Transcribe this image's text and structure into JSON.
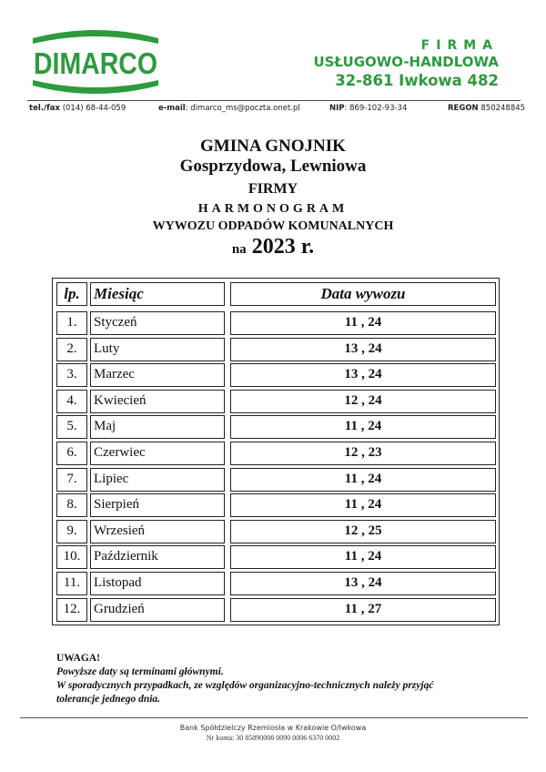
{
  "header": {
    "logo_text": "DIMARCO",
    "firm_line1": "FIRMA",
    "firm_line2": "USŁUGOWO-HANDLOWA",
    "firm_line3": "32-861 Iwkowa 482",
    "tel_label": "tel./fax",
    "tel": "(014) 68-44-059",
    "email_label": "e-mail",
    "email": "dimarco_ms@poczta.onet.pl",
    "nip_label": "NIP",
    "nip": "869-102-93-34",
    "regon_label": "REGON",
    "regon": "850248845",
    "brand_color": "#2e9a3e"
  },
  "title": {
    "line1": "GMINA GNOJNIK",
    "line2": "Gosprzydowa, Lewniowa",
    "line3": "FIRMY",
    "line4": "HARMONOGRAM",
    "line5": "WYWOZU ODPADÓW KOMUNALNYCH",
    "year_prefix": "na",
    "year": "2023 r."
  },
  "table": {
    "headers": [
      "lp.",
      "Miesiąc",
      "Data wywozu"
    ],
    "rows": [
      [
        "1.",
        "Styczeń",
        "11 , 24"
      ],
      [
        "2.",
        "Luty",
        "13 , 24"
      ],
      [
        "3.",
        "Marzec",
        "13 , 24"
      ],
      [
        "4.",
        "Kwiecień",
        "12 , 24"
      ],
      [
        "5.",
        "Maj",
        "11 , 24"
      ],
      [
        "6.",
        "Czerwiec",
        "12 , 23"
      ],
      [
        "7.",
        "Lipiec",
        "11 , 24"
      ],
      [
        "8.",
        "Sierpień",
        "11 , 24"
      ],
      [
        "9.",
        "Wrzesień",
        "12 , 25"
      ],
      [
        "10.",
        "Październik",
        "11 , 24"
      ],
      [
        "11.",
        "Listopad",
        "13 , 24"
      ],
      [
        "12.",
        "Grudzień",
        "11 , 27"
      ]
    ]
  },
  "note": {
    "heading": "UWAGA!",
    "line1": "Powyższe daty są terminami głównymi.",
    "line2": "W sporadycznych przypadkach, ze względów organizacyjno-technicznych należy przyjąć",
    "line3": "tolerancje jednego dnia."
  },
  "footer": {
    "bank": "Bank Spółdzielczy Rzemiosła w Krakowie O/Iwkowa",
    "account": "Nr konta: 30 85890006 0090 0006 6370 0002"
  }
}
